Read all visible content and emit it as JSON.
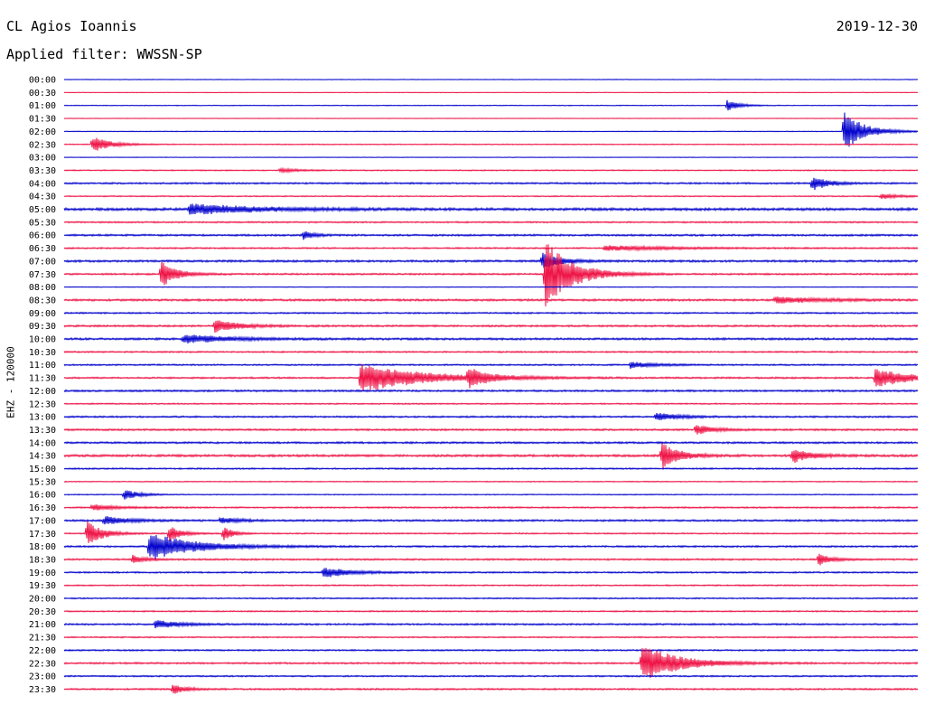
{
  "header": {
    "station": "CL Agios Ioannis",
    "date": "2019-12-30",
    "filter": "Applied filter: WWSSN-SP"
  },
  "channel_label": "EHZ - 120000",
  "colors": {
    "trace_a": "#0000cc",
    "trace_b": "#ee1144",
    "text": "#000000",
    "background": "#ffffff"
  },
  "chart_data": {
    "type": "line",
    "title": "CL Agios Ioannis",
    "subtitle": "Applied filter: WWSSN-SP",
    "date": "2019-12-30",
    "ylabel": "EHZ - 120000",
    "xlabel": "",
    "row_interval_minutes": 30,
    "grid": false,
    "series_colors": [
      "#0000cc",
      "#ee1144"
    ],
    "rows": [
      {
        "label": "00:00",
        "noise": 0.3,
        "events": []
      },
      {
        "label": "00:30",
        "noise": 0.3,
        "events": []
      },
      {
        "label": "01:00",
        "noise": 0.4,
        "events": [
          {
            "minute": 23.3,
            "amp": 1.0,
            "dur": 0.4
          }
        ]
      },
      {
        "label": "01:30",
        "noise": 0.3,
        "events": []
      },
      {
        "label": "02:00",
        "noise": 0.4,
        "events": [
          {
            "minute": 27.4,
            "amp": 3.6,
            "dur": 0.7
          }
        ]
      },
      {
        "label": "02:30",
        "noise": 0.5,
        "events": [
          {
            "minute": 1.0,
            "amp": 1.5,
            "dur": 0.6
          }
        ]
      },
      {
        "label": "03:00",
        "noise": 0.3,
        "events": []
      },
      {
        "label": "03:30",
        "noise": 0.6,
        "events": [
          {
            "minute": 7.6,
            "amp": 0.4,
            "dur": 0.6
          }
        ]
      },
      {
        "label": "04:00",
        "noise": 0.9,
        "events": [
          {
            "minute": 26.3,
            "amp": 1.4,
            "dur": 0.5
          }
        ]
      },
      {
        "label": "04:30",
        "noise": 0.6,
        "events": [
          {
            "minute": 28.7,
            "amp": 0.5,
            "dur": 0.6
          }
        ]
      },
      {
        "label": "05:00",
        "noise": 1.4,
        "events": [
          {
            "minute": 4.4,
            "amp": 1.0,
            "dur": 2.2
          }
        ]
      },
      {
        "label": "05:30",
        "noise": 0.8,
        "events": []
      },
      {
        "label": "06:00",
        "noise": 1.0,
        "events": [
          {
            "minute": 8.4,
            "amp": 1.0,
            "dur": 0.3
          }
        ]
      },
      {
        "label": "06:30",
        "noise": 0.8,
        "events": [
          {
            "minute": 19.0,
            "amp": 0.5,
            "dur": 2.0
          }
        ]
      },
      {
        "label": "07:00",
        "noise": 1.1,
        "events": [
          {
            "minute": 16.8,
            "amp": 1.6,
            "dur": 0.6
          }
        ]
      },
      {
        "label": "07:30",
        "noise": 0.9,
        "events": [
          {
            "minute": 3.4,
            "amp": 2.6,
            "dur": 0.5
          },
          {
            "minute": 16.9,
            "amp": 6.5,
            "dur": 0.9
          }
        ]
      },
      {
        "label": "08:00",
        "noise": 0.4,
        "events": []
      },
      {
        "label": "08:30",
        "noise": 1.1,
        "events": [
          {
            "minute": 25.0,
            "amp": 0.6,
            "dur": 1.5
          }
        ]
      },
      {
        "label": "09:00",
        "noise": 0.8,
        "events": []
      },
      {
        "label": "09:30",
        "noise": 1.0,
        "events": [
          {
            "minute": 5.3,
            "amp": 1.2,
            "dur": 0.8
          }
        ]
      },
      {
        "label": "10:00",
        "noise": 1.1,
        "events": [
          {
            "minute": 4.2,
            "amp": 0.8,
            "dur": 1.5
          }
        ]
      },
      {
        "label": "10:30",
        "noise": 0.8,
        "events": []
      },
      {
        "label": "11:00",
        "noise": 0.8,
        "events": [
          {
            "minute": 19.9,
            "amp": 0.6,
            "dur": 0.8
          }
        ]
      },
      {
        "label": "11:30",
        "noise": 0.9,
        "events": [
          {
            "minute": 10.4,
            "amp": 2.8,
            "dur": 2.0
          },
          {
            "minute": 14.2,
            "amp": 1.6,
            "dur": 0.7
          },
          {
            "minute": 28.5,
            "amp": 2.0,
            "dur": 1.0
          }
        ]
      },
      {
        "label": "12:00",
        "noise": 1.0,
        "events": []
      },
      {
        "label": "12:30",
        "noise": 0.7,
        "events": []
      },
      {
        "label": "13:00",
        "noise": 0.9,
        "events": [
          {
            "minute": 20.8,
            "amp": 0.7,
            "dur": 0.8
          }
        ]
      },
      {
        "label": "13:30",
        "noise": 1.0,
        "events": [
          {
            "minute": 22.2,
            "amp": 0.9,
            "dur": 0.6
          }
        ]
      },
      {
        "label": "14:00",
        "noise": 1.0,
        "events": []
      },
      {
        "label": "14:30",
        "noise": 1.2,
        "events": [
          {
            "minute": 21.0,
            "amp": 2.4,
            "dur": 0.6
          },
          {
            "minute": 25.6,
            "amp": 1.4,
            "dur": 0.6
          }
        ]
      },
      {
        "label": "15:00",
        "noise": 0.8,
        "events": []
      },
      {
        "label": "15:30",
        "noise": 0.5,
        "events": []
      },
      {
        "label": "16:00",
        "noise": 0.5,
        "events": [
          {
            "minute": 2.1,
            "amp": 1.0,
            "dur": 0.5
          }
        ]
      },
      {
        "label": "16:30",
        "noise": 0.8,
        "events": [
          {
            "minute": 1.0,
            "amp": 0.6,
            "dur": 0.8
          }
        ]
      },
      {
        "label": "17:00",
        "noise": 1.0,
        "events": [
          {
            "minute": 1.4,
            "amp": 0.8,
            "dur": 0.8
          },
          {
            "minute": 5.5,
            "amp": 0.6,
            "dur": 0.6
          }
        ]
      },
      {
        "label": "17:30",
        "noise": 0.7,
        "events": [
          {
            "minute": 0.8,
            "amp": 2.4,
            "dur": 0.5
          },
          {
            "minute": 3.7,
            "amp": 1.4,
            "dur": 0.4
          },
          {
            "minute": 5.6,
            "amp": 1.4,
            "dur": 0.3
          }
        ]
      },
      {
        "label": "18:00",
        "noise": 0.9,
        "events": [
          {
            "minute": 3.0,
            "amp": 2.6,
            "dur": 1.5
          }
        ]
      },
      {
        "label": "18:30",
        "noise": 0.9,
        "events": [
          {
            "minute": 2.4,
            "amp": 0.8,
            "dur": 0.4
          },
          {
            "minute": 26.5,
            "amp": 1.2,
            "dur": 0.4
          }
        ]
      },
      {
        "label": "19:00",
        "noise": 0.8,
        "events": [
          {
            "minute": 9.1,
            "amp": 1.0,
            "dur": 0.9
          }
        ]
      },
      {
        "label": "19:30",
        "noise": 0.7,
        "events": []
      },
      {
        "label": "20:00",
        "noise": 0.7,
        "events": []
      },
      {
        "label": "20:30",
        "noise": 0.7,
        "events": []
      },
      {
        "label": "21:00",
        "noise": 0.9,
        "events": [
          {
            "minute": 3.2,
            "amp": 0.8,
            "dur": 0.8
          }
        ]
      },
      {
        "label": "21:30",
        "noise": 0.7,
        "events": []
      },
      {
        "label": "22:00",
        "noise": 0.8,
        "events": []
      },
      {
        "label": "22:30",
        "noise": 0.9,
        "events": [
          {
            "minute": 20.3,
            "amp": 3.6,
            "dur": 1.2
          }
        ]
      },
      {
        "label": "23:00",
        "noise": 0.8,
        "events": []
      },
      {
        "label": "23:30",
        "noise": 0.9,
        "events": [
          {
            "minute": 3.8,
            "amp": 1.0,
            "dur": 0.4
          }
        ]
      }
    ]
  }
}
